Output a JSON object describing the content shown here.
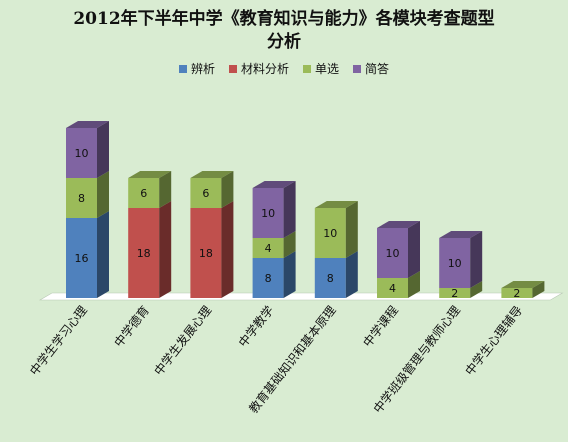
{
  "chart_data": {
    "type": "bar",
    "stacked": true,
    "three_d": true,
    "title": "2012年下半年中学《教育知识与能力》各模块考查题型",
    "title_line2": "分析",
    "legend_position": "top",
    "categories": [
      "中学生学习心理",
      "中学德育",
      "中学生发展心理",
      "中学教学",
      "教育基础知识和基本原理",
      "中学课程",
      "中学班级管理与教师心理",
      "中学生心理辅导"
    ],
    "series": [
      {
        "name": "辨析",
        "color": "#4f81bd",
        "values": [
          16,
          0,
          0,
          8,
          8,
          0,
          0,
          0
        ]
      },
      {
        "name": "材料分析",
        "color": "#c0504d",
        "values": [
          0,
          18,
          18,
          0,
          0,
          0,
          0,
          0
        ]
      },
      {
        "name": "单选",
        "color": "#9bbb59",
        "values": [
          8,
          6,
          6,
          4,
          10,
          4,
          2,
          2
        ]
      },
      {
        "name": "简答",
        "color": "#8064a2",
        "values": [
          10,
          0,
          0,
          10,
          0,
          10,
          10,
          0
        ]
      }
    ],
    "grid": false
  },
  "colors": {
    "background": "#d9ecd2",
    "floor": "#ffffff"
  }
}
